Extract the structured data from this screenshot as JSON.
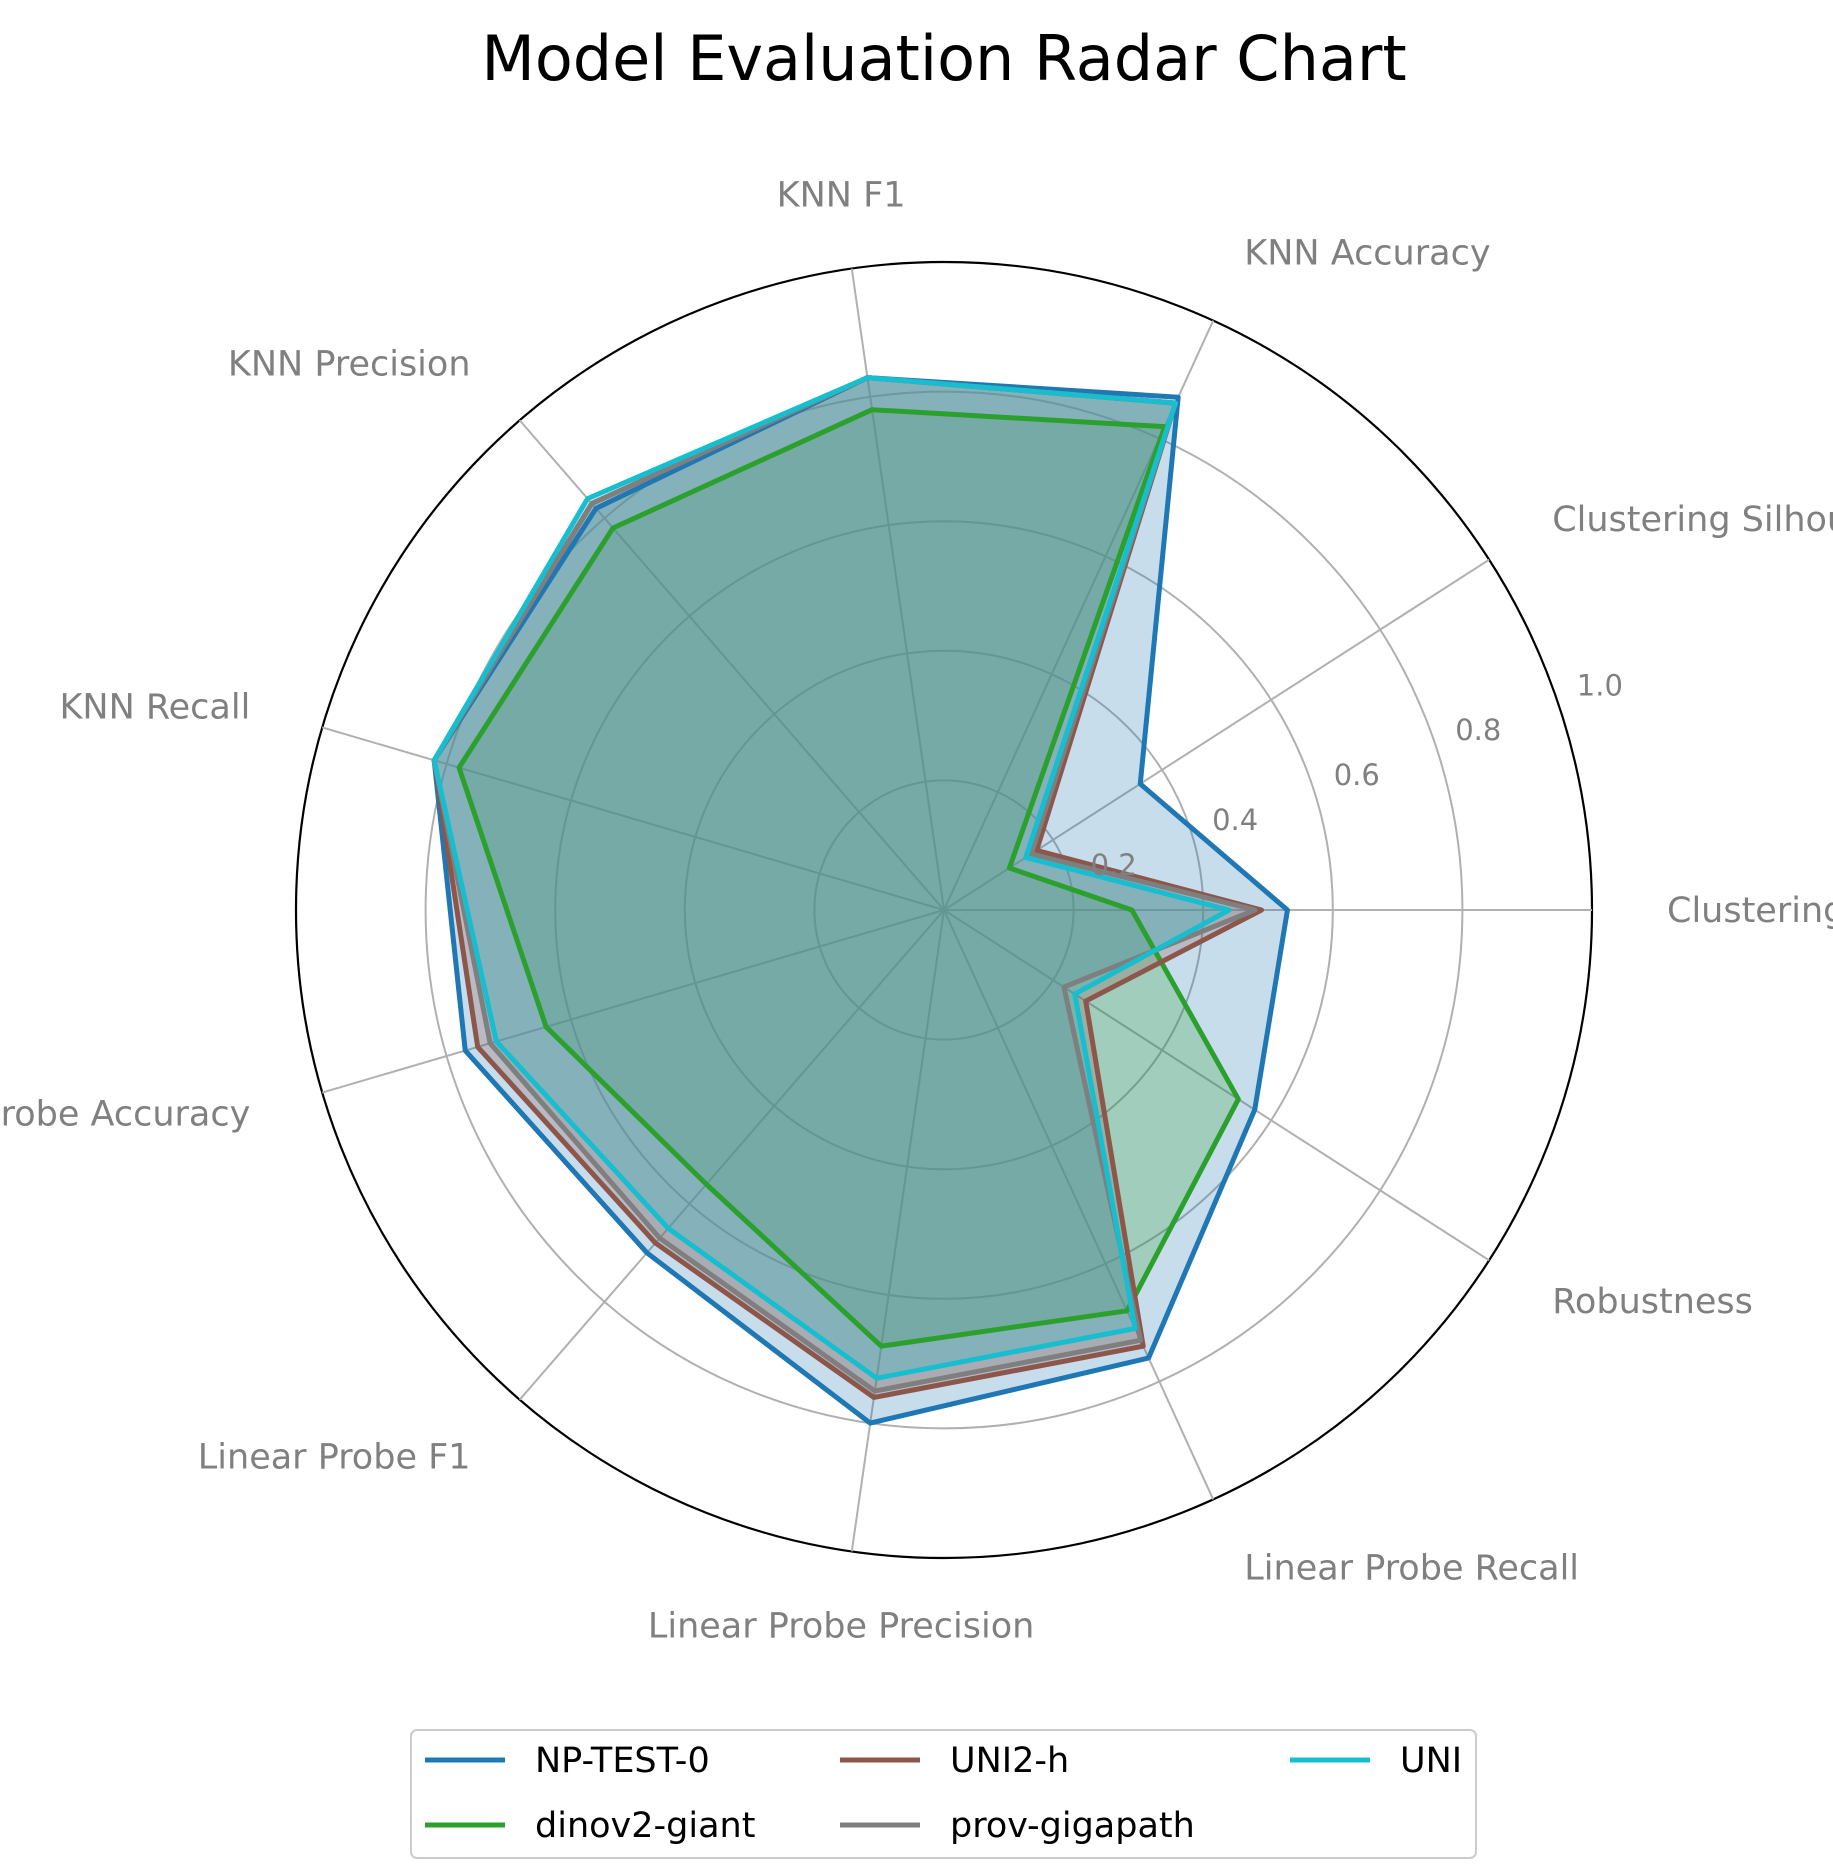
{
  "chart_data": {
    "type": "radar",
    "title": "Model Evaluation Radar Chart",
    "axes": [
      "Clustering Ami",
      "Clustering Silhouette",
      "KNN Accuracy",
      "KNN F1",
      "KNN Precision",
      "KNN Recall",
      "Linear Probe Accuracy",
      "Linear Probe F1",
      "Linear Probe Precision",
      "Linear Probe Recall",
      "Robustness"
    ],
    "rlim": [
      0,
      1.0
    ],
    "rticks": [
      0.2,
      0.4,
      0.6,
      0.8,
      1.0
    ],
    "rtick_labels": [
      "0.2",
      "0.4",
      "0.6",
      "0.8",
      "1.0"
    ],
    "grid": true,
    "legend_position": "bottom-center",
    "series": [
      {
        "name": "NP-TEST-0",
        "color": "#1f77b4",
        "values": [
          0.53,
          0.36,
          0.87,
          0.83,
          0.82,
          0.82,
          0.77,
          0.7,
          0.8,
          0.76,
          0.57
        ]
      },
      {
        "name": "dinov2-giant",
        "color": "#2ca02c",
        "values": [
          0.29,
          0.12,
          0.82,
          0.78,
          0.78,
          0.78,
          0.64,
          0.56,
          0.68,
          0.68,
          0.54
        ]
      },
      {
        "name": "UNI2-h",
        "color": "#8c564b",
        "values": [
          0.49,
          0.17,
          0.86,
          0.83,
          0.83,
          0.82,
          0.75,
          0.68,
          0.76,
          0.74,
          0.26
        ]
      },
      {
        "name": "prov-gigapath",
        "color": "#7f7f7f",
        "values": [
          0.48,
          0.16,
          0.86,
          0.83,
          0.83,
          0.82,
          0.73,
          0.67,
          0.75,
          0.73,
          0.22
        ]
      },
      {
        "name": "UNI",
        "color": "#17becf",
        "values": [
          0.44,
          0.15,
          0.86,
          0.83,
          0.84,
          0.82,
          0.72,
          0.65,
          0.73,
          0.71,
          0.24
        ]
      }
    ]
  }
}
